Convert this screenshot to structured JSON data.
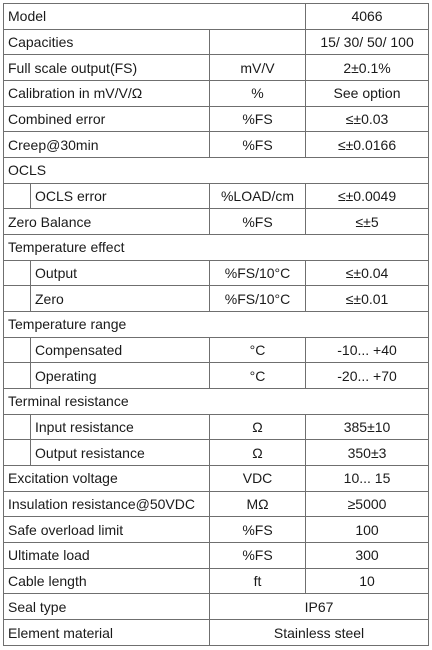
{
  "table": {
    "model": {
      "label": "Model",
      "value": "4066"
    },
    "capacities": {
      "label": "Capacities",
      "value": "15/ 30/ 50/ 100"
    },
    "fso": {
      "label": "Full scale output(FS)",
      "unit": "mV/V",
      "value": "2±0.1%"
    },
    "calibration": {
      "label": "Calibration in mV/V/Ω",
      "unit": "%",
      "value": "See option"
    },
    "combined_error": {
      "label": "Combined error",
      "unit": "%FS",
      "value": "≤±0.03"
    },
    "creep": {
      "label": "Creep@30min",
      "unit": "%FS",
      "value": "≤±0.0166"
    },
    "ocls_header": "OCLS",
    "ocls_error": {
      "label": "OCLS error",
      "unit": "%LOAD/cm",
      "value": "≤±0.0049"
    },
    "zero_balance": {
      "label": "Zero Balance",
      "unit": "%FS",
      "value": "≤±5"
    },
    "temp_effect_header": "Temperature effect",
    "temp_output": {
      "label": "Output",
      "unit": "%FS/10°C",
      "value": "≤±0.04"
    },
    "temp_zero": {
      "label": "Zero",
      "unit": "%FS/10°C",
      "value": "≤±0.01"
    },
    "temp_range_header": "Temperature range",
    "compensated": {
      "label": "Compensated",
      "unit": "°C",
      "value": "-10... +40"
    },
    "operating": {
      "label": "Operating",
      "unit": "°C",
      "value": "-20... +70"
    },
    "terminal_header": "Terminal resistance",
    "input_res": {
      "label": "Input resistance",
      "unit": "Ω",
      "value": "385±10"
    },
    "output_res": {
      "label": "Output resistance",
      "unit": "Ω",
      "value": "350±3"
    },
    "excitation": {
      "label": "Excitation voltage",
      "unit": "VDC",
      "value": "10... 15"
    },
    "insulation": {
      "label": "Insulation resistance@50VDC",
      "unit": "MΩ",
      "value": "≥5000"
    },
    "safe_overload": {
      "label": "Safe overload limit",
      "unit": "%FS",
      "value": "100"
    },
    "ultimate_load": {
      "label": "Ultimate load",
      "unit": "%FS",
      "value": "300"
    },
    "cable_length": {
      "label": "Cable length",
      "unit": "ft",
      "value": "10"
    },
    "seal_type": {
      "label": "Seal type",
      "value": "IP67"
    },
    "element_material": {
      "label": "Element material",
      "value": "Stainless steel"
    }
  }
}
